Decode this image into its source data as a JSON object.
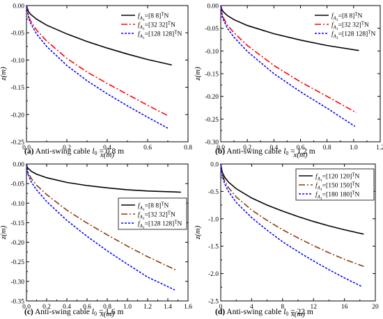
{
  "chart_data": [
    {
      "panel": "a",
      "type": "line",
      "caption": {
        "letter": "(a)",
        "text": " Anti-swing cable ",
        "var": "l",
        "sub": "0",
        "value": " = 0.8 m"
      },
      "xlabel": "x(m)",
      "ylabel": "z(m)",
      "xlim": [
        0,
        0.8
      ],
      "ylim": [
        -0.25,
        0
      ],
      "xticks": [
        0,
        0.2,
        0.4,
        0.6,
        0.8
      ],
      "xtick_labels": [
        "0.0",
        "0.2",
        "0.4",
        "0.6",
        "0.8"
      ],
      "yticks": [
        0,
        -0.05,
        -0.1,
        -0.15,
        -0.2,
        -0.25
      ],
      "ytick_labels": [
        "0.00",
        "-0.05",
        "-0.10",
        "-0.15",
        "-0.20",
        "-0.25"
      ],
      "legend_position": "top-right",
      "series": [
        {
          "name": "f_{A_1}=[8 8]^T N",
          "label_pre": "=[8 8]",
          "color": "#000000",
          "dash": "",
          "x": [
            0,
            0.01,
            0.02,
            0.05,
            0.1,
            0.2,
            0.3,
            0.4,
            0.5,
            0.6,
            0.72
          ],
          "y": [
            0,
            -0.011,
            -0.016,
            -0.025,
            -0.036,
            -0.052,
            -0.066,
            -0.078,
            -0.089,
            -0.099,
            -0.109
          ]
        },
        {
          "name": "f_{A_1}=[32 32]^T N",
          "label_pre": "=[32 32]",
          "color": "#ff0000",
          "dash": "9,3,2,3",
          "x": [
            0,
            0.01,
            0.02,
            0.05,
            0.1,
            0.2,
            0.3,
            0.4,
            0.5,
            0.6,
            0.7
          ],
          "y": [
            0,
            -0.019,
            -0.028,
            -0.045,
            -0.065,
            -0.097,
            -0.122,
            -0.143,
            -0.163,
            -0.183,
            -0.202
          ]
        },
        {
          "name": "f_{A_1}=[128 128]^T N",
          "label_pre": "=[128 128]",
          "color": "#0000ff",
          "dash": "3,2",
          "x": [
            0,
            0.01,
            0.02,
            0.05,
            0.1,
            0.2,
            0.3,
            0.4,
            0.5,
            0.6,
            0.7
          ],
          "y": [
            0,
            -0.022,
            -0.032,
            -0.052,
            -0.075,
            -0.11,
            -0.138,
            -0.162,
            -0.184,
            -0.205,
            -0.225
          ]
        }
      ]
    },
    {
      "panel": "b",
      "type": "line",
      "caption": {
        "letter": "(b)",
        "text": " Anti-swing cable ",
        "var": "l",
        "sub": "0",
        "value": " = 1.2 m"
      },
      "xlabel": "x(m)",
      "ylabel": "z(m)",
      "xlim": [
        0,
        1.2
      ],
      "ylim": [
        -0.3,
        0
      ],
      "xticks": [
        0,
        0.2,
        0.4,
        0.6,
        0.8,
        1.0,
        1.2
      ],
      "xtick_labels": [
        "0.0",
        "0.2",
        "0.4",
        "0.6",
        "0.8",
        "1.0",
        "1.2"
      ],
      "yticks": [
        0,
        -0.05,
        -0.1,
        -0.15,
        -0.2,
        -0.25,
        -0.3
      ],
      "ytick_labels": [
        "0.00",
        "-0.05",
        "-0.10",
        "-0.15",
        "-0.20",
        "-0.25",
        "-0.30"
      ],
      "legend_position": "top-right",
      "series": [
        {
          "name": "f_{A_1}=[8 8]^T N",
          "label_pre": "=[8 8]",
          "color": "#000000",
          "dash": "",
          "x": [
            0,
            0.01,
            0.02,
            0.05,
            0.1,
            0.2,
            0.4,
            0.6,
            0.8,
            1.04
          ],
          "y": [
            0,
            -0.01,
            -0.014,
            -0.022,
            -0.031,
            -0.044,
            -0.062,
            -0.076,
            -0.088,
            -0.099
          ]
        },
        {
          "name": "f_{A_1}=[32 32]^T N",
          "label_pre": "=[32 32]",
          "color": "#ff0000",
          "dash": "9,3,2,3",
          "x": [
            0,
            0.01,
            0.02,
            0.05,
            0.1,
            0.2,
            0.4,
            0.6,
            0.8,
            1.02
          ],
          "y": [
            0,
            -0.018,
            -0.027,
            -0.043,
            -0.06,
            -0.088,
            -0.132,
            -0.168,
            -0.2,
            -0.236
          ]
        },
        {
          "name": "f_{A_1}=[128 128]^T N",
          "label_pre": "=[128 128]",
          "color": "#0000ff",
          "dash": "3,2",
          "x": [
            0,
            0.01,
            0.02,
            0.05,
            0.1,
            0.2,
            0.4,
            0.6,
            0.8,
            1.01
          ],
          "y": [
            0,
            -0.021,
            -0.031,
            -0.05,
            -0.07,
            -0.101,
            -0.15,
            -0.19,
            -0.226,
            -0.266
          ]
        }
      ]
    },
    {
      "panel": "c",
      "type": "line",
      "caption": {
        "letter": "(c)",
        "text": " Anti-swing cable ",
        "var": "l",
        "sub": "0",
        "value": " = 1.6 m"
      },
      "xlabel": "x(m)",
      "ylabel": "z(m)",
      "xlim": [
        0,
        1.6
      ],
      "ylim": [
        -0.35,
        0
      ],
      "xticks": [
        0,
        0.2,
        0.4,
        0.6,
        0.8,
        1.0,
        1.2,
        1.4,
        1.6
      ],
      "xtick_labels": [
        "0.0",
        "0.2",
        "0.4",
        "0.6",
        "0.8",
        "1.0",
        "1.2",
        "1.4",
        "1.6"
      ],
      "yticks": [
        0,
        -0.05,
        -0.1,
        -0.15,
        -0.2,
        -0.25,
        -0.3,
        -0.35
      ],
      "ytick_labels": [
        "0.00",
        "-0.05",
        "-0.10",
        "-0.15",
        "-0.20",
        "-0.25",
        "-0.30",
        "-0.35"
      ],
      "legend_position": "center-right",
      "series": [
        {
          "name": "f_{A_1}=[8 8]^T N",
          "label_pre": "=[8 8]",
          "color": "#000000",
          "dash": "",
          "x": [
            0,
            0.01,
            0.02,
            0.05,
            0.1,
            0.2,
            0.4,
            0.6,
            0.8,
            1.0,
            1.2,
            1.53
          ],
          "y": [
            0,
            -0.009,
            -0.012,
            -0.019,
            -0.026,
            -0.035,
            -0.047,
            -0.055,
            -0.061,
            -0.066,
            -0.069,
            -0.072
          ]
        },
        {
          "name": "f_{A_1}=[32 32]^T N",
          "label_pre": "=[32 32]",
          "color": "#8b3a0a",
          "dash": "9,3,2,3",
          "x": [
            0,
            0.01,
            0.02,
            0.05,
            0.1,
            0.2,
            0.4,
            0.6,
            0.8,
            1.0,
            1.2,
            1.49
          ],
          "y": [
            0,
            -0.016,
            -0.024,
            -0.038,
            -0.054,
            -0.078,
            -0.118,
            -0.151,
            -0.181,
            -0.21,
            -0.237,
            -0.272
          ]
        },
        {
          "name": "f_{A_1}=[128 128]^T N",
          "label_pre": "=[128 128]",
          "color": "#0000ff",
          "dash": "3,2",
          "x": [
            0,
            0.01,
            0.02,
            0.05,
            0.1,
            0.2,
            0.4,
            0.6,
            0.8,
            1.0,
            1.2,
            1.47
          ],
          "y": [
            0,
            -0.02,
            -0.029,
            -0.047,
            -0.066,
            -0.096,
            -0.144,
            -0.185,
            -0.222,
            -0.256,
            -0.289,
            -0.322
          ]
        }
      ]
    },
    {
      "panel": "d",
      "type": "line",
      "caption": {
        "letter": "(d)",
        "text": " Anti-swing cable ",
        "var": "l",
        "sub": "0",
        "value": " = 22 m"
      },
      "xlabel": "x(m)",
      "ylabel": "z(m)",
      "xlim": [
        0,
        20
      ],
      "ylim": [
        -2.5,
        0
      ],
      "xticks": [
        0,
        4,
        8,
        12,
        16,
        20
      ],
      "xtick_labels": [
        "0",
        "4",
        "8",
        "12",
        "16",
        "20"
      ],
      "yticks": [
        0,
        -0.5,
        -1.0,
        -1.5,
        -2.0,
        -2.5
      ],
      "ytick_labels": [
        "0.0",
        "-0.5",
        "-1.0",
        "-1.5",
        "-2.0",
        "-2.5"
      ],
      "legend_position": "top-right",
      "series": [
        {
          "name": "f_{A_1}=[120 120]^T N",
          "label_pre": "=[120 120]",
          "color": "#000000",
          "dash": "",
          "x": [
            0,
            0.2,
            0.5,
            1,
            2,
            4,
            6,
            8,
            10,
            12,
            14,
            16,
            18.5
          ],
          "y": [
            0,
            -0.15,
            -0.24,
            -0.33,
            -0.45,
            -0.62,
            -0.75,
            -0.86,
            -0.96,
            -1.05,
            -1.13,
            -1.2,
            -1.28
          ]
        },
        {
          "name": "f_{A_1}=[150 150]^T N",
          "label_pre": "=[150 150]",
          "color": "#8b3a0a",
          "dash": "9,3,2,3",
          "x": [
            0,
            0.2,
            0.5,
            1,
            2,
            4,
            6,
            8,
            10,
            12,
            14,
            16,
            18.5
          ],
          "y": [
            0,
            -0.19,
            -0.31,
            -0.43,
            -0.6,
            -0.84,
            -1.03,
            -1.2,
            -1.35,
            -1.49,
            -1.62,
            -1.74,
            -1.87
          ]
        },
        {
          "name": "f_{A_1}=[180 180]^T N",
          "label_pre": "=[180 180]",
          "color": "#0000ff",
          "dash": "3,2",
          "x": [
            0,
            0.2,
            0.5,
            1,
            2,
            4,
            6,
            8,
            10,
            12,
            14,
            16,
            18.3
          ],
          "y": [
            0,
            -0.22,
            -0.36,
            -0.5,
            -0.7,
            -0.98,
            -1.21,
            -1.42,
            -1.6,
            -1.77,
            -1.93,
            -2.08,
            -2.24
          ]
        }
      ]
    }
  ],
  "common": {
    "legend_var": "f",
    "legend_sub": "A",
    "legend_subsub": "1",
    "legend_sup": "T",
    "legend_unit": "N"
  }
}
